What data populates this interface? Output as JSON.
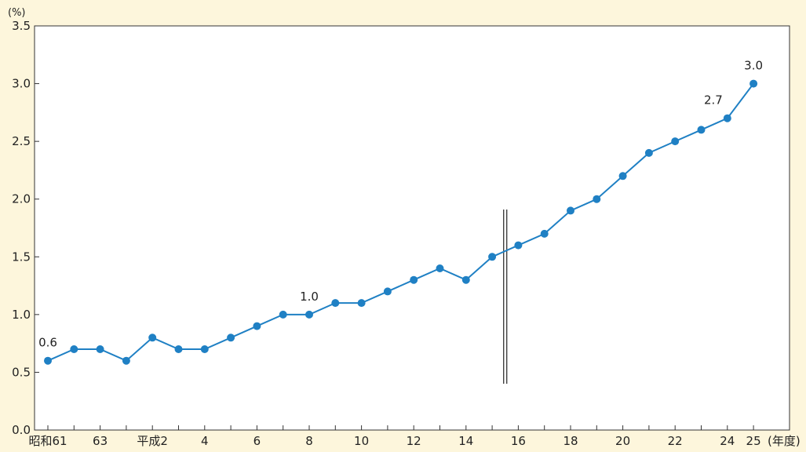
{
  "chart_data": {
    "type": "line",
    "y_unit": "(%)",
    "x_unit": "(年度)",
    "ylim": [
      0.0,
      3.5
    ],
    "y_ticks": [
      "0.0",
      "0.5",
      "1.0",
      "1.5",
      "2.0",
      "2.5",
      "3.0",
      "3.5"
    ],
    "x_tick_labels": [
      "昭和61",
      "63",
      "平成2",
      "4",
      "6",
      "8",
      "10",
      "12",
      "14",
      "16",
      "18",
      "20",
      "22",
      "24",
      "25"
    ],
    "x": [
      "昭和61",
      "昭和62",
      "昭和63",
      "平成元",
      "平成2",
      "平成3",
      "平成4",
      "平成5",
      "平成6",
      "平成7",
      "平成8",
      "平成9",
      "平成10",
      "平成11",
      "平成12",
      "平成13",
      "平成14",
      "平成15",
      "平成16",
      "平成17",
      "平成18",
      "平成19",
      "平成20",
      "平成21",
      "平成22",
      "平成23",
      "平成24",
      "平成25"
    ],
    "series": [
      {
        "values": [
          0.6,
          0.7,
          0.7,
          0.6,
          0.8,
          0.7,
          0.7,
          0.8,
          0.9,
          1.0,
          1.0,
          1.1,
          1.1,
          1.2,
          1.3,
          1.4,
          1.3,
          1.5,
          1.6,
          1.7,
          1.9,
          2.0,
          2.2,
          2.4,
          2.5,
          2.6,
          2.7,
          3.0
        ],
        "color": "#1f80c4"
      }
    ],
    "data_labels": [
      {
        "x": "昭和61",
        "text": "0.6"
      },
      {
        "x": "平成8",
        "text": "1.0"
      },
      {
        "x": "平成24",
        "text": "2.7"
      },
      {
        "x": "平成25",
        "text": "3.0"
      }
    ],
    "break_marker_between": [
      "平成15",
      "平成16"
    ],
    "grid": false,
    "legend": "none"
  }
}
